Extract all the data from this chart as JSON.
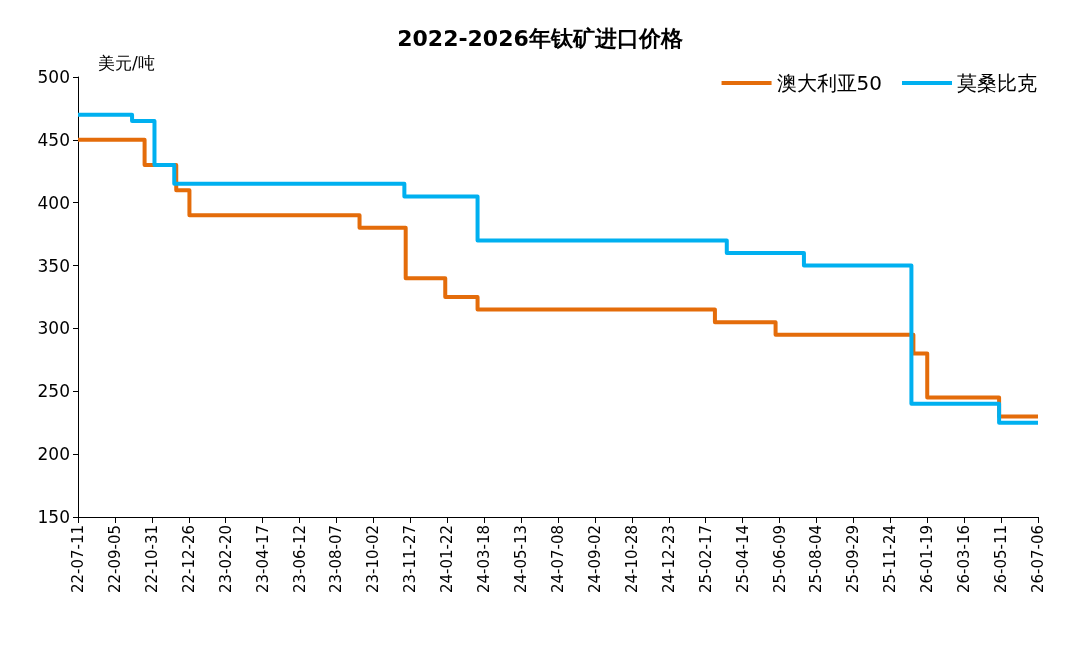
{
  "chart_data": {
    "type": "step",
    "title": "2022-2026年钛矿进口价格",
    "ylabel": "美元/吨",
    "xlim": [
      "2022-07-11",
      "2026-07-06"
    ],
    "xticks": [
      {
        "value": "2022-07-11",
        "label": "22-07-11"
      },
      {
        "value": "2022-09-05",
        "label": "22-09-05"
      },
      {
        "value": "2022-10-31",
        "label": "22-10-31"
      },
      {
        "value": "2022-12-26",
        "label": "22-12-26"
      },
      {
        "value": "2023-02-20",
        "label": "23-02-20"
      },
      {
        "value": "2023-04-17",
        "label": "23-04-17"
      },
      {
        "value": "2023-06-12",
        "label": "23-06-12"
      },
      {
        "value": "2023-08-07",
        "label": "23-08-07"
      },
      {
        "value": "2023-10-02",
        "label": "23-10-02"
      },
      {
        "value": "2023-11-27",
        "label": "23-11-27"
      },
      {
        "value": "2024-01-22",
        "label": "24-01-22"
      },
      {
        "value": "2024-03-18",
        "label": "24-03-18"
      },
      {
        "value": "2024-05-13",
        "label": "24-05-13"
      },
      {
        "value": "2024-07-08",
        "label": "24-07-08"
      },
      {
        "value": "2024-09-02",
        "label": "24-09-02"
      },
      {
        "value": "2024-10-28",
        "label": "24-10-28"
      },
      {
        "value": "2024-12-23",
        "label": "24-12-23"
      },
      {
        "value": "2025-02-17",
        "label": "25-02-17"
      },
      {
        "value": "2025-04-14",
        "label": "25-04-14"
      },
      {
        "value": "2025-06-09",
        "label": "25-06-09"
      },
      {
        "value": "2025-08-04",
        "label": "25-08-04"
      },
      {
        "value": "2025-09-29",
        "label": "25-09-29"
      },
      {
        "value": "2025-11-24",
        "label": "25-11-24"
      },
      {
        "value": "2026-01-19",
        "label": "26-01-19"
      },
      {
        "value": "2026-03-16",
        "label": "26-03-16"
      },
      {
        "value": "2026-05-11",
        "label": "26-05-11"
      },
      {
        "value": "2026-07-06",
        "label": "26-07-06"
      }
    ],
    "ylim": [
      150,
      500
    ],
    "yticks": [
      150,
      200,
      250,
      300,
      350,
      400,
      450,
      500
    ],
    "grid": false,
    "legend": "top right",
    "line_style": "solid",
    "marker": "none",
    "series": [
      {
        "name": "澳大利亚50",
        "color": "#e46c0a",
        "x": [
          "2022-07-11",
          "2022-10-20",
          "2022-12-07",
          "2022-12-27",
          "2023-09-11",
          "2023-11-20",
          "2024-01-19",
          "2024-03-08",
          "2025-03-03",
          "2025-06-03",
          "2025-12-29",
          "2026-01-19",
          "2026-05-08",
          "2026-07-06"
        ],
        "values": [
          450,
          430,
          410,
          390,
          380,
          340,
          325,
          315,
          305,
          295,
          280,
          245,
          230,
          230
        ]
      },
      {
        "name": "莫桑比克",
        "color": "#00b0f0",
        "x": [
          "2022-07-11",
          "2022-10-01",
          "2022-11-04",
          "2022-12-04",
          "2023-11-18",
          "2024-03-08",
          "2025-03-21",
          "2025-07-16",
          "2025-12-26",
          "2026-05-08",
          "2026-07-06"
        ],
        "values": [
          470,
          465,
          430,
          415,
          405,
          370,
          360,
          350,
          240,
          225,
          225
        ]
      }
    ]
  }
}
